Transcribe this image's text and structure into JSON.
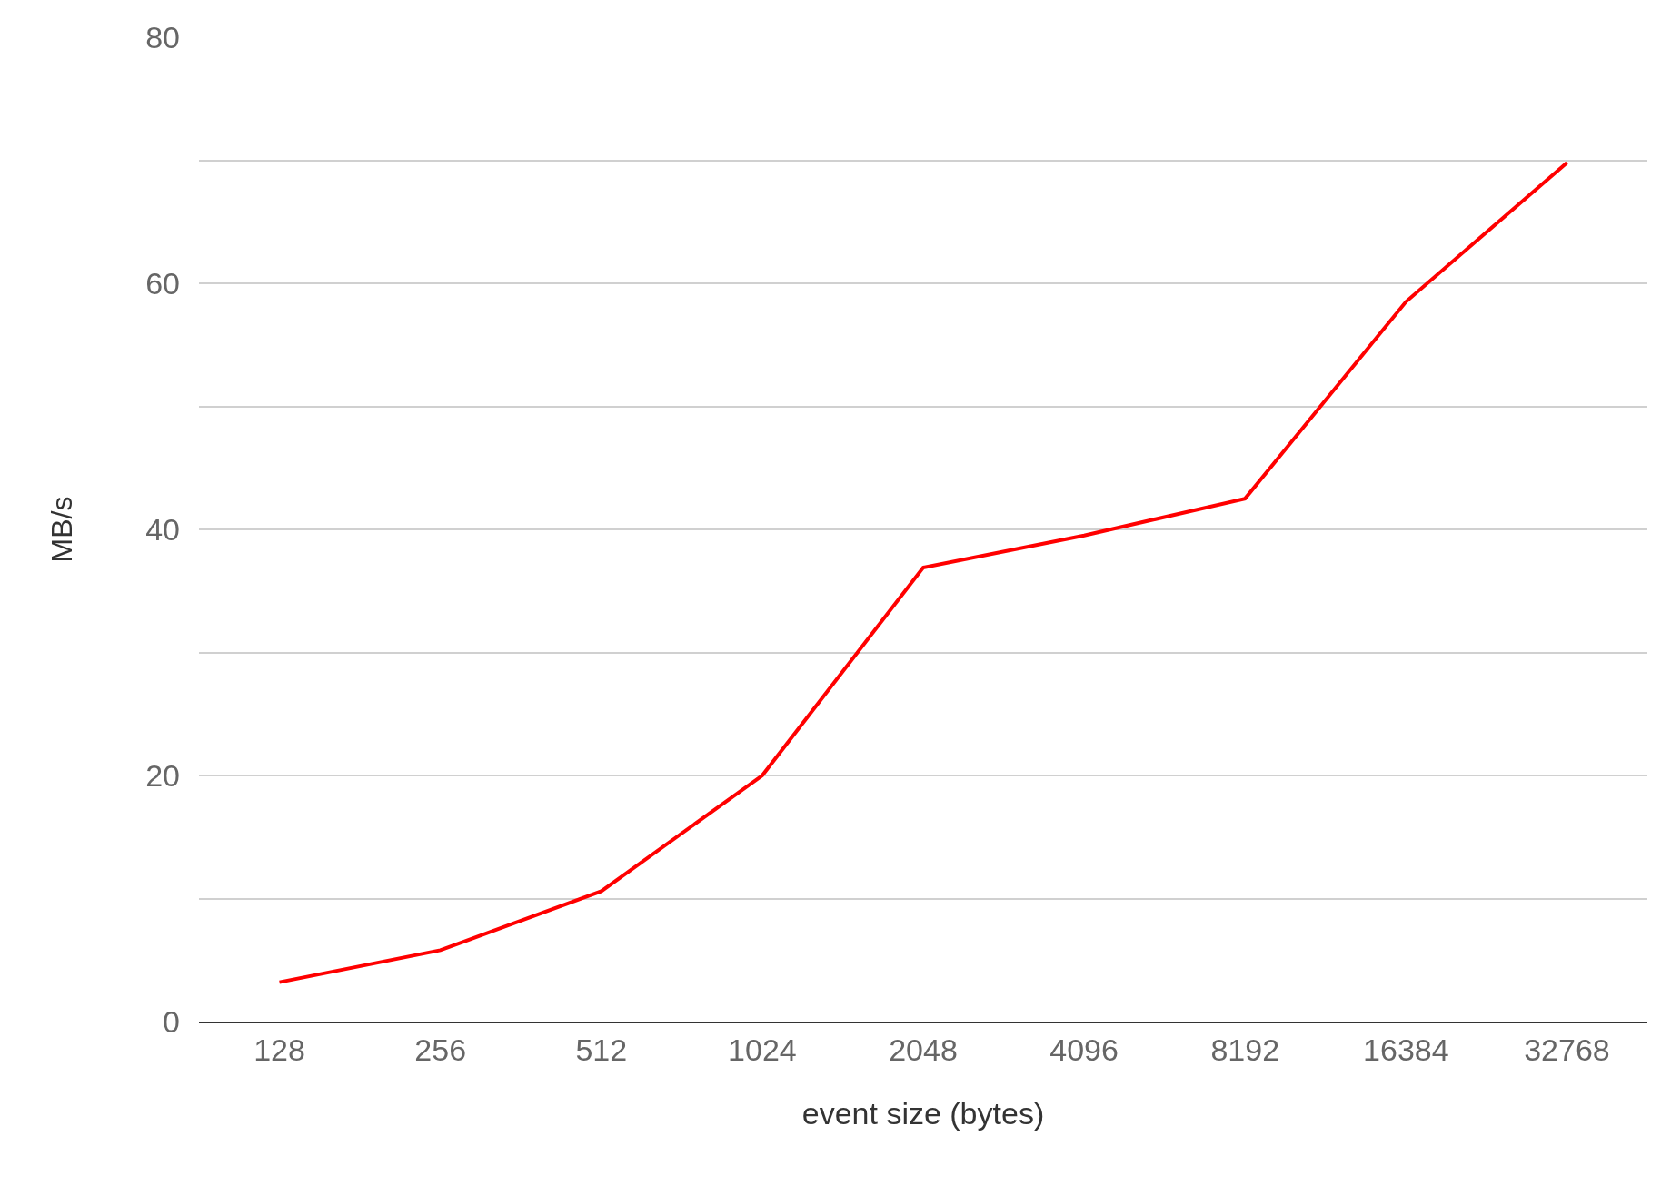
{
  "chart_data": {
    "type": "line",
    "xlabel": "event size (bytes)",
    "ylabel": "MB/s",
    "categories": [
      "128",
      "256",
      "512",
      "1024",
      "2048",
      "4096",
      "8192",
      "16384",
      "32768"
    ],
    "series": [
      {
        "color": "#ff0000",
        "values": [
          3.2,
          5.8,
          10.6,
          20.0,
          36.9,
          39.5,
          42.5,
          58.5,
          69.8
        ]
      }
    ],
    "ylim": [
      0,
      80
    ],
    "yticks": [
      0,
      {
        "value": 10,
        "label": null
      },
      20,
      {
        "value": 30,
        "label": null
      },
      40,
      {
        "value": 50,
        "label": null
      },
      60,
      {
        "value": 70,
        "label": null
      },
      80
    ],
    "grid": "y",
    "marker": "none",
    "line_style": "solid"
  }
}
